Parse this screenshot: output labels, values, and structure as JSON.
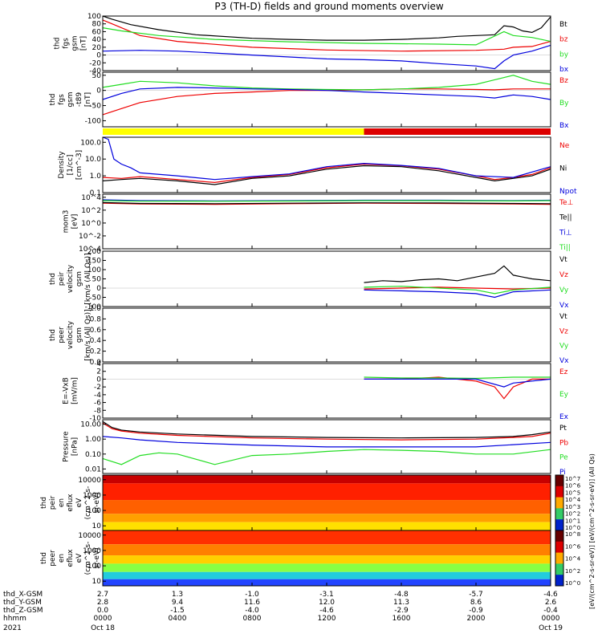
{
  "title": "P3 (TH-D) fields and ground moments overview",
  "colors": {
    "black": "#000000",
    "red": "#ee0000",
    "green": "#22dd22",
    "blue": "#0000dd",
    "yellow": "#ffff00",
    "mode_red": "#dd0000"
  },
  "chart_data": [
    {
      "type": "line",
      "ylabel": [
        "thd",
        "fgs",
        "gsm",
        "[nT]"
      ],
      "ylim": [
        -40,
        100
      ],
      "yticks": [
        "100",
        "80",
        "60",
        "40",
        "20",
        "0",
        "-20",
        "-40"
      ],
      "series": [
        {
          "name": "Bt",
          "color": "#000000",
          "x": [
            0,
            0.5,
            1.5,
            3,
            5,
            8,
            10,
            12,
            14,
            16,
            18,
            19,
            20,
            21,
            21.5,
            22,
            22.5,
            23,
            23.5,
            24
          ],
          "y": [
            100,
            92,
            78,
            65,
            52,
            43,
            40,
            38,
            38,
            40,
            44,
            48,
            50,
            52,
            75,
            72,
            62,
            58,
            70,
            98
          ]
        },
        {
          "name": "bz",
          "color": "#ee0000",
          "x": [
            0,
            0.5,
            2,
            4,
            8,
            12,
            16,
            20,
            21.5,
            22,
            23,
            24
          ],
          "y": [
            90,
            80,
            50,
            35,
            20,
            13,
            10,
            12,
            15,
            20,
            22,
            35
          ]
        },
        {
          "name": "by",
          "color": "#22dd22",
          "x": [
            0,
            1,
            3,
            6,
            10,
            14,
            18,
            20,
            21.5,
            22,
            23,
            24
          ],
          "y": [
            70,
            62,
            50,
            40,
            34,
            30,
            28,
            26,
            60,
            50,
            45,
            35
          ]
        },
        {
          "name": "bx",
          "color": "#0000dd",
          "x": [
            0,
            2,
            4,
            6,
            8,
            10,
            12,
            14,
            16,
            18,
            20,
            21,
            21.5,
            22,
            23,
            24
          ],
          "y": [
            10,
            12,
            10,
            5,
            0,
            -5,
            -10,
            -12,
            -15,
            -22,
            -28,
            -35,
            -15,
            0,
            10,
            25
          ]
        }
      ]
    },
    {
      "type": "line",
      "ylabel": [
        "thd",
        "fgs",
        "gsm",
        "-t89",
        "[nT]"
      ],
      "ylim": [
        -120,
        60
      ],
      "yticks": [
        "50",
        "0",
        "-50",
        "-100"
      ],
      "series": [
        {
          "name": "Bz",
          "color": "#ee0000",
          "x": [
            0,
            1,
            2,
            4,
            6,
            8,
            10,
            12,
            14,
            16,
            18,
            20,
            21,
            22,
            23,
            24
          ],
          "y": [
            -80,
            -60,
            -40,
            -20,
            -10,
            -5,
            0,
            0,
            2,
            5,
            5,
            3,
            2,
            5,
            5,
            5
          ]
        },
        {
          "name": "By",
          "color": "#22dd22",
          "x": [
            0,
            1,
            2,
            4,
            6,
            8,
            10,
            12,
            14,
            16,
            18,
            20,
            21,
            22,
            23,
            24
          ],
          "y": [
            10,
            20,
            30,
            25,
            15,
            8,
            5,
            3,
            2,
            5,
            10,
            20,
            35,
            50,
            30,
            20
          ]
        },
        {
          "name": "Bx",
          "color": "#0000dd",
          "x": [
            0,
            1,
            2,
            4,
            6,
            8,
            10,
            12,
            14,
            16,
            18,
            20,
            21,
            22,
            23,
            24
          ],
          "y": [
            -30,
            -10,
            5,
            10,
            8,
            5,
            3,
            0,
            -5,
            -10,
            -15,
            -20,
            -25,
            -15,
            -20,
            -30
          ]
        }
      ]
    },
    {
      "type": "line",
      "ylabel": [
        "Density",
        "[1/cc]",
        "[cm^-3]"
      ],
      "ylim": [
        0.1,
        200
      ],
      "yscale": "log",
      "yticks": [
        "100.0",
        "10.0",
        "1.0",
        "0.1"
      ],
      "series": [
        {
          "name": "Ne",
          "color": "#ee0000",
          "x": [
            0,
            1,
            2,
            4,
            6,
            8,
            10,
            12,
            14,
            16,
            18,
            20,
            21,
            22,
            23,
            24
          ],
          "y": [
            0.8,
            0.7,
            0.9,
            0.6,
            0.4,
            0.8,
            1.2,
            3.0,
            5.0,
            4.0,
            2.5,
            1.0,
            0.6,
            0.8,
            1.2,
            3.0
          ]
        },
        {
          "name": "Ni",
          "color": "#000000",
          "x": [
            0,
            1,
            2,
            4,
            6,
            8,
            10,
            12,
            14,
            16,
            18,
            20,
            21,
            22,
            23,
            24
          ],
          "y": [
            0.5,
            0.6,
            0.7,
            0.5,
            0.3,
            0.7,
            1.0,
            2.5,
            4.0,
            3.5,
            2.0,
            0.8,
            0.5,
            0.7,
            1.0,
            2.5
          ]
        },
        {
          "name": "Npot",
          "color": "#0000dd",
          "x": [
            0,
            0.3,
            0.6,
            1,
            1.5,
            2,
            4,
            6,
            8,
            10,
            12,
            14,
            16,
            18,
            20,
            22,
            24
          ],
          "y": [
            200,
            150,
            10,
            5,
            3,
            1.5,
            1.0,
            0.6,
            0.9,
            1.3,
            3.5,
            5.5,
            4.2,
            2.8,
            1.0,
            0.8,
            3.5
          ]
        }
      ]
    },
    {
      "type": "line",
      "ylabel": [
        "mom3",
        "[eV]"
      ],
      "ylim": [
        0.0001,
        30000
      ],
      "yscale": "log",
      "yticks": [
        "10^4",
        "10^2",
        "10^0",
        "10^-2",
        "10^-4"
      ],
      "series": [
        {
          "name": "Te⊥",
          "color": "#ee0000",
          "x": [
            0,
            2,
            6,
            10,
            14,
            18,
            22,
            24
          ],
          "y": [
            1200,
            900,
            800,
            1000,
            1200,
            1100,
            900,
            800
          ]
        },
        {
          "name": "Te||",
          "color": "#000000",
          "x": [
            0,
            2,
            6,
            10,
            14,
            18,
            22,
            24
          ],
          "y": [
            1500,
            1100,
            1000,
            1200,
            1400,
            1300,
            1100,
            1000
          ]
        },
        {
          "name": "Ti⊥",
          "color": "#0000dd",
          "x": [
            0,
            2,
            6,
            10,
            14,
            18,
            22,
            24
          ],
          "y": [
            4000,
            3000,
            2800,
            3000,
            3500,
            3500,
            3000,
            3500
          ]
        },
        {
          "name": "Ti||",
          "color": "#22dd22",
          "x": [
            0,
            2,
            6,
            10,
            14,
            18,
            22,
            24
          ],
          "y": [
            3000,
            2500,
            2400,
            2600,
            3000,
            3000,
            2700,
            3000
          ]
        }
      ]
    },
    {
      "type": "line",
      "ylabel": [
        "thd",
        "peir",
        "velocity",
        "gsm",
        "[km/s (All Qs)]"
      ],
      "ylim": [
        -100,
        200
      ],
      "yticks": [
        "200",
        "150",
        "100",
        "50",
        "0",
        "-50",
        "-100"
      ],
      "series": [
        {
          "name": "Vt",
          "color": "#000000",
          "x": [
            14,
            15,
            16,
            17,
            18,
            19,
            20,
            21,
            21.5,
            22,
            22.5,
            23,
            24
          ],
          "y": [
            30,
            40,
            35,
            45,
            50,
            40,
            60,
            80,
            120,
            70,
            60,
            50,
            40
          ]
        },
        {
          "name": "Vz",
          "color": "#ee0000",
          "x": [
            14,
            16,
            18,
            20,
            22,
            24
          ],
          "y": [
            -5,
            0,
            5,
            0,
            -5,
            0
          ]
        },
        {
          "name": "Vy",
          "color": "#22dd22",
          "x": [
            14,
            16,
            18,
            20,
            21,
            22,
            24
          ],
          "y": [
            5,
            10,
            0,
            -10,
            -30,
            -10,
            5
          ]
        },
        {
          "name": "Vx",
          "color": "#0000dd",
          "x": [
            14,
            16,
            18,
            20,
            21,
            22,
            24
          ],
          "y": [
            -10,
            -15,
            -20,
            -30,
            -50,
            -20,
            -10
          ]
        }
      ]
    },
    {
      "type": "line",
      "ylabel": [
        "thd",
        "peer",
        "velocity",
        "gsm",
        "[km/s (All Qs)]"
      ],
      "ylim": [
        0.0,
        1.0
      ],
      "yticks": [
        "1.0",
        "0.8",
        "0.6",
        "0.4",
        "0.2",
        "0.0"
      ],
      "series": [
        {
          "name": "Vt",
          "color": "#000000",
          "x": [],
          "y": []
        },
        {
          "name": "Vz",
          "color": "#ee0000",
          "x": [],
          "y": []
        },
        {
          "name": "Vy",
          "color": "#22dd22",
          "x": [],
          "y": []
        },
        {
          "name": "Vx",
          "color": "#0000dd",
          "x": [],
          "y": []
        }
      ]
    },
    {
      "type": "line",
      "ylabel": [
        "E=-VxB",
        "[mV/m]"
      ],
      "ylim": [
        -10,
        4
      ],
      "yticks": [
        "4",
        "2",
        "0",
        "-2",
        "-4",
        "-6",
        "-8",
        "-10"
      ],
      "series": [
        {
          "name": "Ez",
          "color": "#ee0000",
          "x": [
            14,
            16,
            18,
            20,
            21,
            21.5,
            22,
            23,
            24
          ],
          "y": [
            0,
            0,
            0.5,
            -0.5,
            -2,
            -5,
            -2,
            0,
            0
          ]
        },
        {
          "name": "Ey",
          "color": "#22dd22",
          "x": [
            14,
            16,
            18,
            20,
            22,
            24
          ],
          "y": [
            0.5,
            0.3,
            0.3,
            0.2,
            0.5,
            0.5
          ]
        },
        {
          "name": "Ex",
          "color": "#0000dd",
          "x": [
            14,
            16,
            18,
            20,
            21.5,
            22,
            24
          ],
          "y": [
            0,
            0,
            0,
            0,
            -2,
            -1,
            0
          ]
        }
      ]
    },
    {
      "type": "line",
      "ylabel": [
        "Pressure",
        "[nPa]"
      ],
      "ylim": [
        0.005,
        20
      ],
      "yscale": "log",
      "yticks": [
        "10.00",
        "1.00",
        "0.10",
        "0.01"
      ],
      "series": [
        {
          "name": "Pt",
          "color": "#000000",
          "x": [
            0,
            0.5,
            1,
            2,
            4,
            8,
            12,
            16,
            20,
            22,
            23,
            24
          ],
          "y": [
            15,
            6,
            4,
            3,
            2.2,
            1.5,
            1.3,
            1.2,
            1.3,
            1.5,
            2,
            3
          ]
        },
        {
          "name": "Pb",
          "color": "#ee0000",
          "x": [
            0,
            0.5,
            1,
            2,
            4,
            8,
            12,
            16,
            20,
            22,
            23,
            24
          ],
          "y": [
            12,
            5,
            3.5,
            2.5,
            1.8,
            1.2,
            1.0,
            0.9,
            1.0,
            1.3,
            1.5,
            2.5
          ]
        },
        {
          "name": "Pe",
          "color": "#22dd22",
          "x": [
            0,
            1,
            2,
            3,
            4,
            6,
            8,
            10,
            12,
            14,
            16,
            18,
            20,
            22,
            24
          ],
          "y": [
            0.05,
            0.02,
            0.08,
            0.12,
            0.1,
            0.02,
            0.08,
            0.1,
            0.15,
            0.2,
            0.18,
            0.15,
            0.1,
            0.1,
            0.2
          ]
        },
        {
          "name": "Pi",
          "color": "#0000dd",
          "x": [
            0,
            1,
            2,
            4,
            8,
            12,
            16,
            20,
            24
          ],
          "y": [
            1.5,
            1.2,
            0.9,
            0.6,
            0.4,
            0.3,
            0.3,
            0.3,
            0.6
          ]
        }
      ]
    },
    {
      "type": "heatmap",
      "ylabel": [
        "thd",
        "peir",
        "en",
        "eflux",
        "eV",
        "(cm^2-s-",
        "sr-eV)"
      ],
      "ylim": [
        5,
        20000
      ],
      "yscale": "log",
      "yticks": [
        "10000",
        "1000",
        "100",
        "10"
      ],
      "colorbar_ticks": [
        "10^7",
        "10^6",
        "10^5",
        "10^4",
        "10^3",
        "10^2",
        "10^1",
        "10^0"
      ]
    },
    {
      "type": "heatmap",
      "ylabel": [
        "thd",
        "peer",
        "en",
        "eflux",
        "eV",
        "(cm^2-s-",
        "sr-eV)"
      ],
      "ylim": [
        5,
        20000
      ],
      "yscale": "log",
      "yticks": [
        "10000",
        "1000",
        "100",
        "10"
      ],
      "colorbar_ticks": [
        "10^8",
        "10^6",
        "10^4",
        "10^2",
        "10^0"
      ]
    }
  ],
  "colorbar_label": "[eV/(cm^2-s-sr-eV)] [eV/(cm^2-s-sr-eV)] (All Qs)",
  "footer": {
    "row_labels": [
      "thd_X-GSM",
      "thd_Y-GSM",
      "thd_Z-GSM",
      "hhmm",
      "2021"
    ],
    "columns": [
      {
        "x": "2.7",
        "y": "2.8",
        "z": "0.0",
        "hhmm": "0000",
        "date": "Oct 18"
      },
      {
        "x": "1.3",
        "y": "9.4",
        "z": "-1.5",
        "hhmm": "0400",
        "date": ""
      },
      {
        "x": "-1.0",
        "y": "11.6",
        "z": "-4.0",
        "hhmm": "0800",
        "date": ""
      },
      {
        "x": "-3.1",
        "y": "12.0",
        "z": "-4.6",
        "hhmm": "1200",
        "date": ""
      },
      {
        "x": "-4.8",
        "y": "11.3",
        "z": "-2.9",
        "hhmm": "1600",
        "date": ""
      },
      {
        "x": "-5.7",
        "y": "8.6",
        "z": "-0.9",
        "hhmm": "2000",
        "date": ""
      },
      {
        "x": "-4.6",
        "y": "2.6",
        "z": "-0.4",
        "hhmm": "0000",
        "date": "Oct 19"
      }
    ]
  }
}
